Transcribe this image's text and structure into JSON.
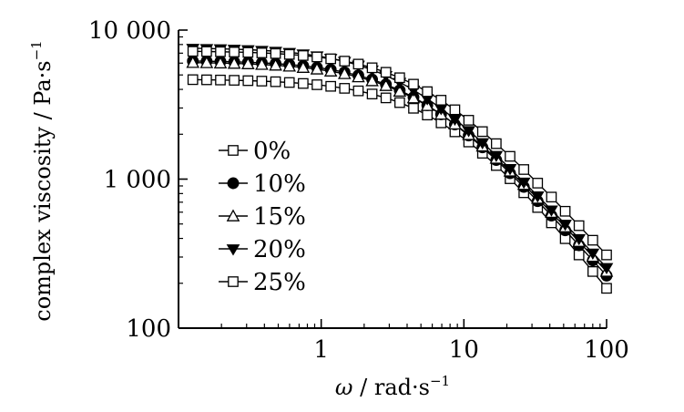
{
  "chart_data": {
    "type": "line",
    "xscale": "log",
    "yscale": "log",
    "xlim": [
      0.1,
      100
    ],
    "ylim": [
      100,
      10000
    ],
    "xlabel": "ω / rad·s⁻¹",
    "ylabel": "complex viscosity / Pa·s⁻¹",
    "xlabel_parts": {
      "symbol": "ω",
      "unit": " / rad",
      "dot": "·",
      "unit2": "s",
      "exp": "−1"
    },
    "ylabel_parts": {
      "text": "complex viscosity / Pa",
      "dot": "·",
      "unit2": "s",
      "exp": "−1"
    },
    "x_ticks": [
      {
        "value": 1,
        "label": "1"
      },
      {
        "value": 10,
        "label": "10"
      },
      {
        "value": 100,
        "label": "100"
      }
    ],
    "y_ticks": [
      {
        "value": 100,
        "label": "100"
      },
      {
        "value": 1000,
        "label": "1 000"
      },
      {
        "value": 10000,
        "label": "10 000"
      }
    ],
    "grid": false,
    "legend_position": "center-left",
    "x_range": [
      0.126,
      100
    ],
    "point_count": 31,
    "series": [
      {
        "name": "0%",
        "marker": "open-square",
        "color": "#000000",
        "y_start": 4650,
        "y_end": 185,
        "k": 0.132,
        "m": 1.17
      },
      {
        "name": "10%",
        "marker": "filled-circle",
        "color": "#000000",
        "y_start": 6200,
        "y_end": 225,
        "k": 0.21,
        "m": 1.24
      },
      {
        "name": "15%",
        "marker": "open-triangle-up",
        "color": "#000000",
        "y_start": 6050,
        "y_end": 240,
        "k": 0.2,
        "m": 1.2
      },
      {
        "name": "20%",
        "marker": "filled-triangle-down",
        "color": "#000000",
        "y_start": 7550,
        "y_end": 255,
        "k": 0.27,
        "m": 1.28
      },
      {
        "name": "25%",
        "marker": "open-square",
        "color": "#000000",
        "y_start": 7200,
        "y_end": 310,
        "k": 0.2,
        "m": 1.26
      }
    ]
  }
}
